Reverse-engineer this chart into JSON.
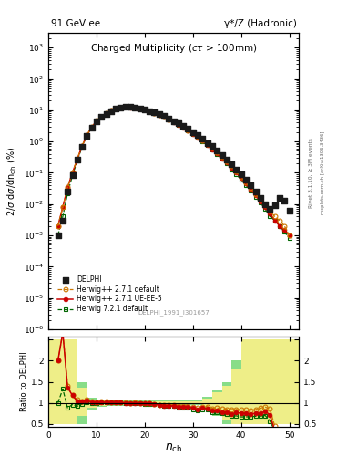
{
  "header_left": "91 GeV ee",
  "header_right": "γ*/Z (Hadronic)",
  "title_main": "Charged Multiplicity",
  "title_sub": "(cτ > 100mm)",
  "ylabel_main": "2/σ dσ/dn$_{\\rm ch}$ (%)",
  "ylabel_ratio": "Ratio to DELPHI",
  "xlabel": "n$_{\\rm ch}$",
  "watermark": "DELPHI_1991_I301657",
  "right_label1": "Rivet 3.1.10, ≥ 3M events",
  "right_label2": "mcplots.cern.ch [arXiv:1306.3436]",
  "delphi_x": [
    2,
    3,
    4,
    5,
    6,
    7,
    8,
    9,
    10,
    11,
    12,
    13,
    14,
    15,
    16,
    17,
    18,
    19,
    20,
    21,
    22,
    23,
    24,
    25,
    26,
    27,
    28,
    29,
    30,
    31,
    32,
    33,
    34,
    35,
    36,
    37,
    38,
    39,
    40,
    41,
    42,
    43,
    44,
    45,
    46,
    47,
    48,
    49,
    50
  ],
  "delphi_y": [
    0.001,
    0.003,
    0.025,
    0.085,
    0.26,
    0.69,
    1.5,
    2.8,
    4.5,
    6.0,
    7.8,
    9.5,
    11.0,
    12.0,
    12.5,
    12.5,
    12.0,
    11.5,
    10.5,
    9.5,
    8.5,
    7.5,
    6.5,
    5.5,
    4.5,
    3.8,
    3.1,
    2.5,
    2.0,
    1.6,
    1.2,
    0.9,
    0.7,
    0.5,
    0.37,
    0.27,
    0.19,
    0.13,
    0.09,
    0.06,
    0.04,
    0.025,
    0.016,
    0.01,
    0.007,
    0.009,
    0.016,
    0.013,
    0.006
  ],
  "hd_x": [
    2,
    3,
    4,
    5,
    6,
    7,
    8,
    9,
    10,
    11,
    12,
    13,
    14,
    15,
    16,
    17,
    18,
    19,
    20,
    21,
    22,
    23,
    24,
    25,
    26,
    27,
    28,
    29,
    30,
    31,
    32,
    33,
    34,
    35,
    36,
    37,
    38,
    39,
    40,
    41,
    42,
    43,
    44,
    45,
    46,
    47,
    48,
    49,
    50
  ],
  "hd_y": [
    0.002,
    0.008,
    0.035,
    0.1,
    0.28,
    0.72,
    1.6,
    2.9,
    4.6,
    6.2,
    8.0,
    9.7,
    11.2,
    12.2,
    12.6,
    12.5,
    12.1,
    11.4,
    10.4,
    9.4,
    8.3,
    7.2,
    6.2,
    5.2,
    4.3,
    3.5,
    2.9,
    2.3,
    1.8,
    1.4,
    1.1,
    0.82,
    0.61,
    0.44,
    0.32,
    0.23,
    0.16,
    0.11,
    0.075,
    0.05,
    0.033,
    0.021,
    0.014,
    0.009,
    0.006,
    0.004,
    0.003,
    0.002,
    0.001
  ],
  "uee5_x": [
    2,
    3,
    4,
    5,
    6,
    7,
    8,
    9,
    10,
    11,
    12,
    13,
    14,
    15,
    16,
    17,
    18,
    19,
    20,
    21,
    22,
    23,
    24,
    25,
    26,
    27,
    28,
    29,
    30,
    31,
    32,
    33,
    34,
    35,
    36,
    37,
    38,
    39,
    40,
    41,
    42,
    43,
    44,
    45,
    46,
    47,
    48,
    49,
    50
  ],
  "uee5_y": [
    0.002,
    0.008,
    0.034,
    0.1,
    0.27,
    0.71,
    1.58,
    2.85,
    4.55,
    6.1,
    7.9,
    9.6,
    11.1,
    12.1,
    12.5,
    12.45,
    12.0,
    11.35,
    10.35,
    9.35,
    8.25,
    7.15,
    6.1,
    5.1,
    4.2,
    3.45,
    2.8,
    2.25,
    1.75,
    1.35,
    1.05,
    0.78,
    0.57,
    0.41,
    0.29,
    0.21,
    0.14,
    0.1,
    0.068,
    0.045,
    0.029,
    0.019,
    0.012,
    0.008,
    0.005,
    0.003,
    0.002,
    0.0015,
    0.001
  ],
  "h721_x": [
    2,
    3,
    4,
    5,
    6,
    7,
    8,
    9,
    10,
    11,
    12,
    13,
    14,
    15,
    16,
    17,
    18,
    19,
    20,
    21,
    22,
    23,
    24,
    25,
    26,
    27,
    28,
    29,
    30,
    31,
    32,
    33,
    34,
    35,
    36,
    37,
    38,
    39,
    40,
    41,
    42,
    43,
    44,
    45,
    46,
    47,
    48,
    49,
    50
  ],
  "h721_y": [
    0.001,
    0.004,
    0.022,
    0.082,
    0.24,
    0.67,
    1.53,
    2.79,
    4.5,
    6.1,
    7.9,
    9.6,
    11.1,
    12.1,
    12.5,
    12.4,
    12.0,
    11.3,
    10.3,
    9.3,
    8.2,
    7.1,
    6.05,
    5.05,
    4.15,
    3.4,
    2.75,
    2.2,
    1.7,
    1.32,
    1.02,
    0.75,
    0.55,
    0.39,
    0.28,
    0.2,
    0.13,
    0.09,
    0.06,
    0.04,
    0.027,
    0.017,
    0.011,
    0.007,
    0.004,
    0.003,
    0.002,
    0.0013,
    0.0008
  ],
  "ratio_hd_x": [
    2,
    3,
    4,
    5,
    6,
    7,
    8,
    9,
    10,
    11,
    12,
    13,
    14,
    15,
    16,
    17,
    18,
    19,
    20,
    21,
    22,
    23,
    24,
    25,
    26,
    27,
    28,
    29,
    30,
    31,
    32,
    33,
    34,
    35,
    36,
    37,
    38,
    39,
    40,
    41,
    42,
    43,
    44,
    45,
    46,
    47,
    48,
    49,
    50
  ],
  "ratio_hd_y": [
    2.0,
    2.67,
    1.4,
    1.18,
    1.08,
    1.04,
    1.07,
    1.04,
    1.02,
    1.03,
    1.03,
    1.02,
    1.02,
    1.02,
    1.01,
    1.0,
    1.01,
    0.99,
    0.99,
    0.99,
    0.98,
    0.96,
    0.95,
    0.95,
    0.956,
    0.921,
    0.935,
    0.92,
    0.9,
    0.875,
    0.917,
    0.911,
    0.871,
    0.88,
    0.865,
    0.852,
    0.842,
    0.846,
    0.833,
    0.833,
    0.825,
    0.84,
    0.875,
    0.9,
    0.857,
    0.444,
    0.188,
    0.154,
    0.167
  ],
  "ratio_uee5_x": [
    2,
    3,
    4,
    5,
    6,
    7,
    8,
    9,
    10,
    11,
    12,
    13,
    14,
    15,
    16,
    17,
    18,
    19,
    20,
    21,
    22,
    23,
    24,
    25,
    26,
    27,
    28,
    29,
    30,
    31,
    32,
    33,
    34,
    35,
    36,
    37,
    38,
    39,
    40,
    41,
    42,
    43,
    44,
    45,
    46,
    47,
    48,
    49,
    50
  ],
  "ratio_uee5_y": [
    2.0,
    2.67,
    1.36,
    1.18,
    1.04,
    1.03,
    1.053,
    1.018,
    1.011,
    1.017,
    1.013,
    1.011,
    1.009,
    1.008,
    1.0,
    0.996,
    1.0,
    0.987,
    0.986,
    0.984,
    0.971,
    0.953,
    0.938,
    0.927,
    0.933,
    0.908,
    0.903,
    0.9,
    0.875,
    0.844,
    0.875,
    0.867,
    0.814,
    0.82,
    0.784,
    0.778,
    0.737,
    0.769,
    0.756,
    0.75,
    0.725,
    0.76,
    0.75,
    0.8,
    0.714,
    0.333,
    0.125,
    0.115,
    0.167
  ],
  "ratio_721_x": [
    2,
    3,
    4,
    5,
    6,
    7,
    8,
    9,
    10,
    11,
    12,
    13,
    14,
    15,
    16,
    17,
    18,
    19,
    20,
    21,
    22,
    23,
    24,
    25,
    26,
    27,
    28,
    29,
    30,
    31,
    32,
    33,
    34,
    35,
    36,
    37,
    38,
    39,
    40,
    41,
    42,
    43,
    44,
    45,
    46,
    47,
    48,
    49,
    50
  ],
  "ratio_721_y": [
    1.0,
    1.33,
    0.88,
    0.96,
    0.92,
    0.97,
    1.02,
    0.996,
    1.0,
    1.017,
    1.013,
    1.011,
    1.009,
    1.008,
    1.0,
    0.992,
    1.0,
    0.983,
    0.981,
    0.979,
    0.965,
    0.947,
    0.931,
    0.918,
    0.922,
    0.895,
    0.887,
    0.88,
    0.85,
    0.825,
    0.85,
    0.833,
    0.786,
    0.78,
    0.757,
    0.741,
    0.684,
    0.692,
    0.667,
    0.667,
    0.675,
    0.68,
    0.688,
    0.7,
    0.571,
    0.333,
    0.125,
    0.1,
    0.133
  ],
  "color_delphi": "#1a1a1a",
  "color_hd": "#cc7700",
  "color_uee5": "#cc0000",
  "color_721": "#006600",
  "color_band_green": "#88dd88",
  "color_band_yellow": "#eeee88",
  "ylim_main": [
    1e-06,
    3000.0
  ],
  "ylim_ratio": [
    0.42,
    2.58
  ],
  "xlim": [
    0,
    52
  ],
  "xticks": [
    0,
    10,
    20,
    30,
    40,
    50
  ],
  "ratio_yticks": [
    0.5,
    1.0,
    1.5,
    2.0,
    2.5
  ]
}
